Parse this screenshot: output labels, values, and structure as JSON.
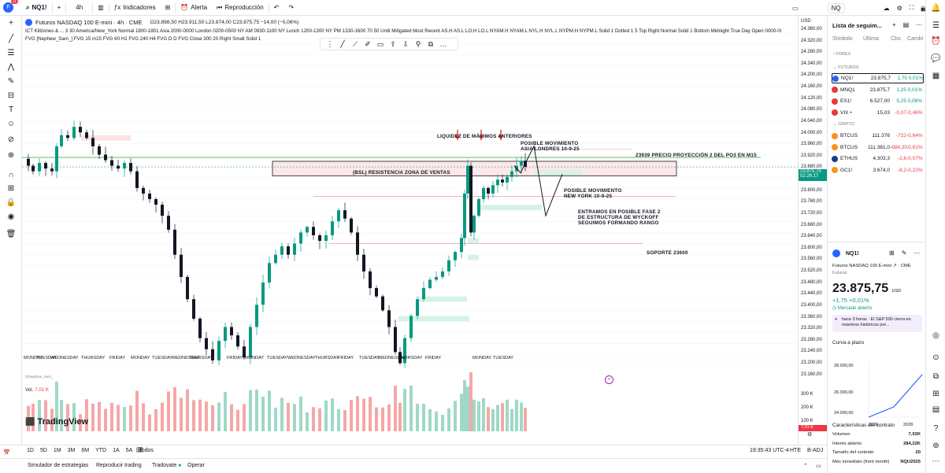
{
  "topbar": {
    "avatar_text": "F",
    "avatar_badge": "11",
    "symbol": "NQ1!",
    "interval": "4h",
    "indicators_label": "Indicadores",
    "alert_label": "Alerta",
    "replay_label": "Reproducción",
    "watchlist_symbol": "NQ"
  },
  "legend": {
    "title": "Futuros NASDAQ 100 E-mini · 4h · CME",
    "ohlc": "O23.898,50 H23.911,50 L23.874,00 C23.875,75 −14,00 (−0,06%)",
    "ind1": "ICT Killzones & ... 3 30 America/New_York Normal 1800-1801 Asia 2000-0000 London 0200-0500 NY AM 0930-1100 NY Lunch 1200-1300 NY PM 1330-1600 70 50 Until Mitigated Most Recent AS.H AS.L LO.H LO.L NYAM.H NYAM.L NYL.H NYL.L NYPM.H NYPM.L Solid 1 Dotted 1 5 Top Right Normal Solid 1 Bottom Midnight True Day Open 0000-0001 06:00 0",
    "ind2": "FVG [Nephew_Sam_] FVG 15 m15 FVG 60 H1 FVG 240 H4 FVG D D FVG Close 300 20 Right Small Solid 1",
    "vol_label": "Vol.",
    "vol_value": "7,01 K",
    "watermark": "@Nephew_Sam_"
  },
  "annotations": {
    "liquidez": "LIQUIDEZ DE MÁXIMOS ANTERIORES",
    "posible_asia_1": "POSIBLE MOVIMIENTO",
    "posible_asia_2": "ASIA LONDRES 10-9-25",
    "proyeccion": "23939 PRECIO PROYECCIÓN 2 DEL PO3 EN M15",
    "bsl": "(BSL) RESISTENCIA ZONA DE VENTAS",
    "posible_ny_1": "POSIBLE MOVIMIENTO",
    "posible_ny_2": "NEW YORK 10-9-25",
    "fase_1": "ENTRAMOS EN POSIBLE FASE 2",
    "fase_2": "DE ESTRUCTURA DE WYCKOFF",
    "fase_3": "SEGUIMOS FORMANDO RANGO",
    "soporte": "SOPORTE 23600",
    "fvg_tag": "7%"
  },
  "price_axis": {
    "currency": "USD",
    "ticks": [
      "24.360,00",
      "24.320,00",
      "24.280,00",
      "24.240,00",
      "24.200,00",
      "24.160,00",
      "24.120,00",
      "24.080,00",
      "24.040,00",
      "24.000,00",
      "23.960,00",
      "23.920,00",
      "23.880,00",
      "23.840,00",
      "23.800,00",
      "23.760,00",
      "23.720,00",
      "23.680,00",
      "23.640,00",
      "23.600,00",
      "23.560,00",
      "23.520,00",
      "23.480,00",
      "23.440,00",
      "23.400,00",
      "23.360,00",
      "23.320,00",
      "23.280,00",
      "23.240,00",
      "23.200,00",
      "23.160,00"
    ],
    "current_price": "23.875,75",
    "countdown": "02:26:17",
    "vol_ticks": [
      "300 K",
      "200 K",
      "100 K"
    ],
    "vol_current": "7,01 K"
  },
  "time_axis": {
    "dates": [
      "11",
      "12",
      "13",
      "14",
      "15",
      "18",
      "19",
      "20",
      "21",
      "22",
      "25",
      "26",
      "27",
      "28",
      "29",
      "Sep",
      "2",
      "3",
      "4",
      "5",
      "8",
      "9",
      "10",
      "11",
      "12",
      "15",
      "16",
      "17",
      "18",
      "19",
      "22",
      "23",
      "24",
      "25"
    ],
    "days": [
      "MONDAY",
      "TUESDAY",
      "WEDNESDAY",
      "THURSDAY",
      "FRIDAY",
      "MONDAY",
      "TUESDAY",
      "WEDNESDAY",
      "THURSDAY",
      "FRIDAY",
      "MONDAY",
      "TUESDAY",
      "WEDNESDAY",
      "THURSDAY",
      "FRIDAY",
      "TUESDAY",
      "WEDNESDAY",
      "THURSDAY",
      "FRIDAY",
      "MONDAY",
      "TUESDAY"
    ]
  },
  "bottom": {
    "ranges": [
      "1D",
      "5D",
      "1M",
      "3M",
      "6M",
      "YTD",
      "1A",
      "5A",
      "Todos"
    ],
    "clock": "19:35:43 UTC-4",
    "hte": "HTE",
    "badj": "B-ADJ",
    "tabs": [
      "Simulador de estrategias",
      "Reproducir trading",
      "Tradovate",
      "Operar"
    ],
    "logo": "TradingView"
  },
  "watchlist": {
    "title": "Lista de seguim...",
    "cols": [
      "Símbolo",
      "Última",
      "Cbo",
      "Cambi"
    ],
    "group_forex": "FOREX",
    "group_futures": "FUTUROS",
    "group_crypto": "CRIPTO",
    "futures": [
      {
        "sym": "NQ1!",
        "last": "23.875,7",
        "chg": "1,75",
        "pct": "0,01%",
        "dir": "pos",
        "color": "#2962ff"
      },
      {
        "sym": "MNQ1",
        "last": "23.875,7",
        "chg": "1,25",
        "pct": "0,01%",
        "dir": "pos",
        "color": "#e53935"
      },
      {
        "sym": "ES1!",
        "last": "6.527,00",
        "chg": "5,25",
        "pct": "0,08%",
        "dir": "pos",
        "color": "#e53935"
      },
      {
        "sym": "VIX •",
        "last": "15,03",
        "chg": "-0,07",
        "pct": "-0,46%",
        "dir": "neg",
        "color": "#e53935"
      }
    ],
    "crypto": [
      {
        "sym": "BTCUS",
        "last": "111.376",
        "chg": "-722",
        "pct": "-0,64%",
        "dir": "neg",
        "color": "#f7931a"
      },
      {
        "sym": "BTCUS",
        "last": "111.381,0",
        "chg": "-684,20",
        "pct": "-0,61%",
        "dir": "neg",
        "color": "#f7931a"
      },
      {
        "sym": "ETHUS",
        "last": "4.303,3",
        "chg": "-2,8",
        "pct": "-0,07%",
        "dir": "neg",
        "color": "#1e3a8a"
      },
      {
        "sym": "GC1!",
        "last": "3.674,0",
        "chg": "-8,2",
        "pct": "-0,22%",
        "dir": "neg",
        "color": "#f7931a"
      }
    ]
  },
  "detail": {
    "symbol": "NQ1!",
    "name": "Futuros NASDAQ 100 E-mini",
    "exchange": "CME",
    "category": "Futuros",
    "price": "23.875,75",
    "currency": "USD",
    "change": "+1,75 +0,01%",
    "market": "Mercado abierto",
    "news": "hace 3 horas · El S&P 500 cierra en máximos históricos por...",
    "curve_title": "Curva a plazo",
    "curve_y": [
      "28.000,00",
      "26.000,00",
      "24.000,00"
    ],
    "curve_x": [
      "2026",
      "2028"
    ],
    "contract_title": "Características del contrato",
    "specs": [
      {
        "k": "Volumen",
        "v": "7,02K"
      },
      {
        "k": "Interés abierto",
        "v": "284,22K"
      },
      {
        "k": "Tamaño del contrato",
        "v": "20"
      },
      {
        "k": "Mes inmediato (front month)",
        "v": "NQU2025"
      }
    ]
  },
  "chart_data": {
    "type": "candlestick",
    "symbol": "NQ1!",
    "interval": "4h",
    "ylim": [
      23140,
      24380
    ],
    "levels": [
      {
        "label": "23939 PRECIO PROYECCIÓN 2 DEL PO3 EN M15",
        "value": 23939
      },
      {
        "label": "SOPORTE 23600",
        "value": 23600
      }
    ],
    "resistance_zone": {
      "label": "(BSL) RESISTENCIA ZONA DE VENTAS",
      "low": 23844,
      "high": 23896
    },
    "last_price": 23875.75
  }
}
